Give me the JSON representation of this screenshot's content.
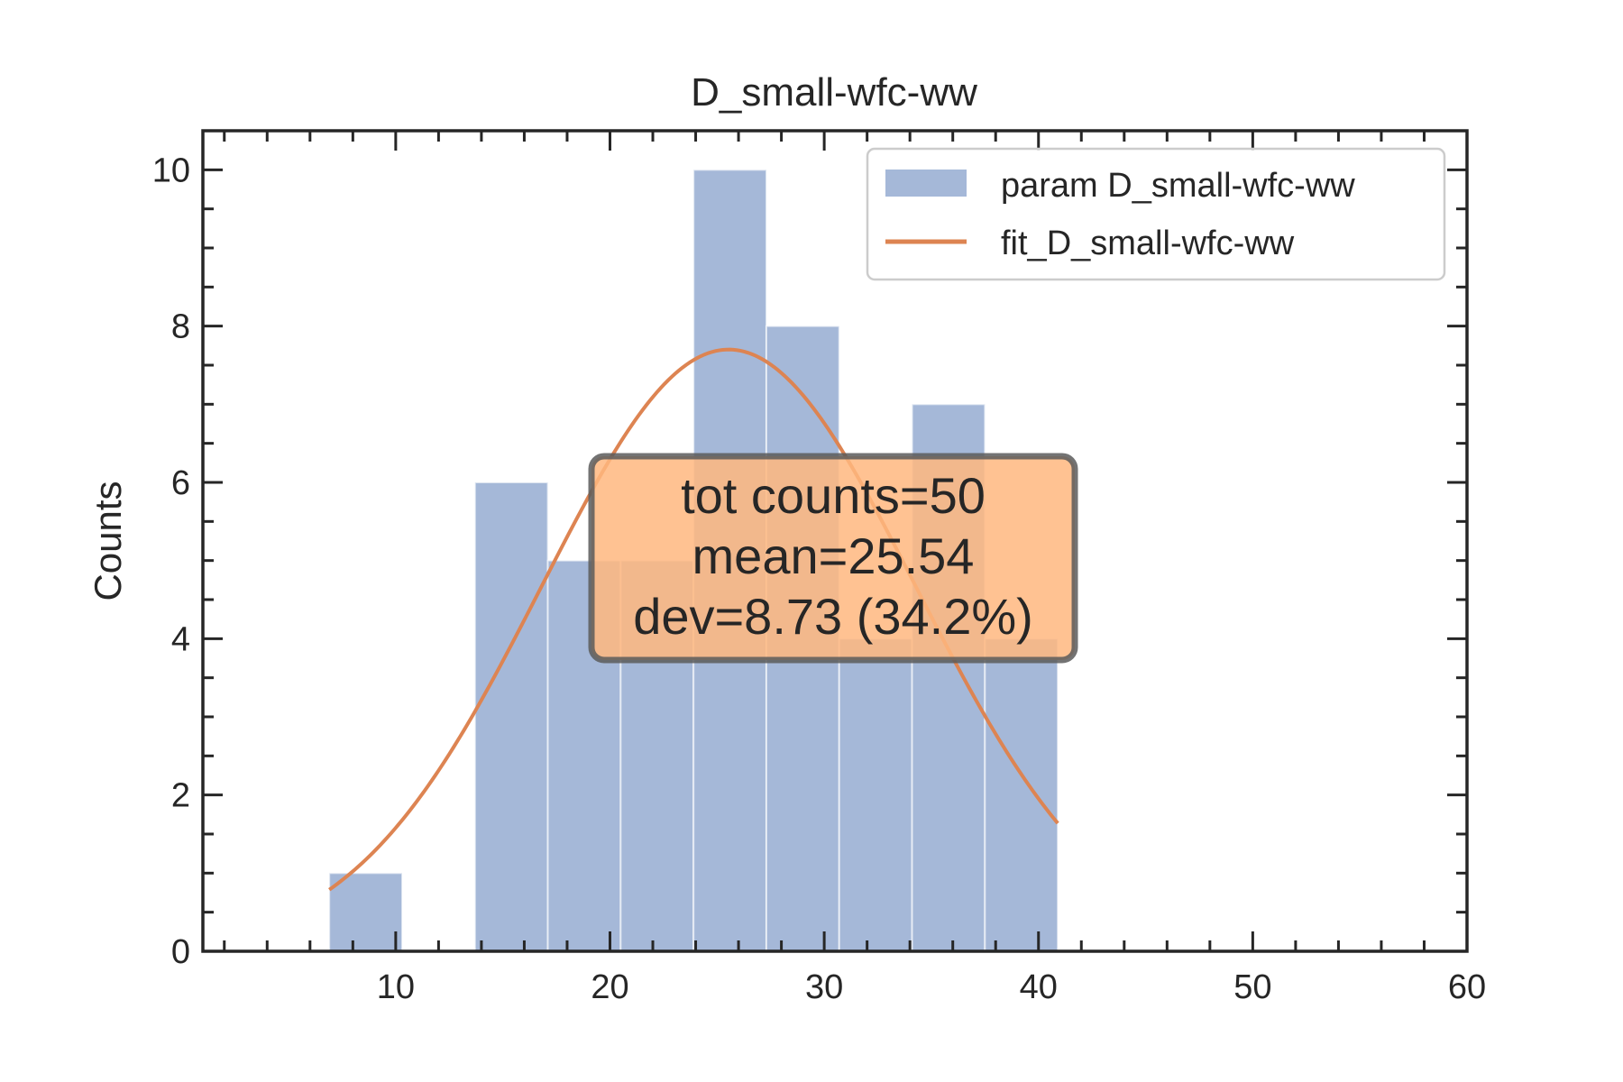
{
  "chart_data": {
    "type": "bar",
    "title": "D_small-wfc-ww",
    "xlabel": "",
    "ylabel": "Counts",
    "xlim": [
      1,
      60
    ],
    "ylim": [
      0,
      10.5
    ],
    "x_ticks": [
      10,
      20,
      30,
      40,
      50,
      60
    ],
    "y_ticks": [
      0,
      2,
      4,
      6,
      8,
      10
    ],
    "grid": false,
    "legend_position": "top-right",
    "histogram": {
      "name": "param D_small-wfc-ww",
      "color": "#a5b8d8",
      "bins": [
        {
          "x0": 6.9,
          "x1": 10.3,
          "count": 1
        },
        {
          "x0": 10.3,
          "x1": 13.7,
          "count": 0
        },
        {
          "x0": 13.7,
          "x1": 17.1,
          "count": 6
        },
        {
          "x0": 17.1,
          "x1": 20.5,
          "count": 5
        },
        {
          "x0": 20.5,
          "x1": 23.9,
          "count": 5
        },
        {
          "x0": 23.9,
          "x1": 27.3,
          "count": 10
        },
        {
          "x0": 27.3,
          "x1": 30.7,
          "count": 8
        },
        {
          "x0": 30.7,
          "x1": 34.1,
          "count": 4
        },
        {
          "x0": 34.1,
          "x1": 37.5,
          "count": 7
        },
        {
          "x0": 37.5,
          "x1": 40.9,
          "count": 4
        }
      ]
    },
    "fit": {
      "name": "fit_D_small-wfc-ww",
      "color": "#dd8452",
      "x_range": [
        6.9,
        40.9
      ],
      "peak_x": 25.54,
      "peak_y": 7.7,
      "sigma": 8.73
    },
    "stats_box": {
      "lines": [
        "tot counts=50",
        "mean=25.54",
        "dev=8.73 (34.2%)"
      ],
      "color": "#ffb77f"
    }
  }
}
